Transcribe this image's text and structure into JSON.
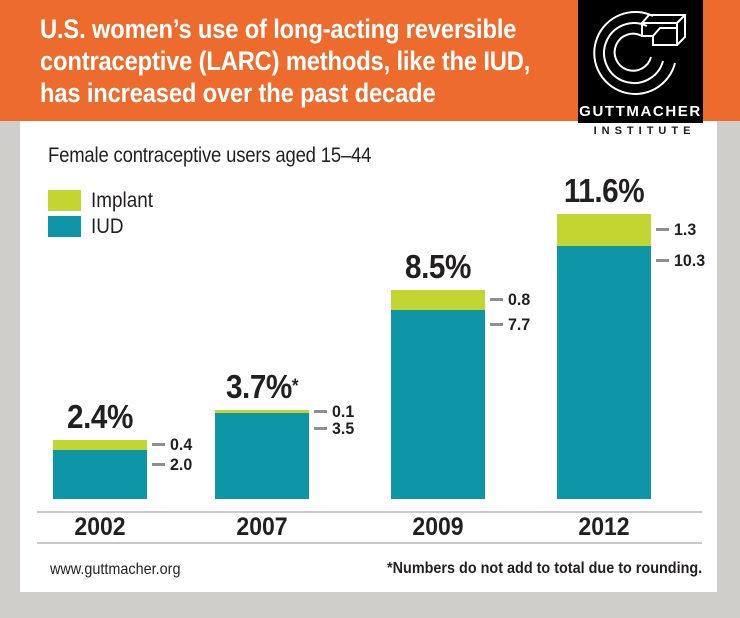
{
  "colors": {
    "orange": "#ed6b2c",
    "teal": "#0e96a6",
    "green": "#c3d530",
    "page_bg": "#cfcecb",
    "card": "#ffffff",
    "ink": "#231f20",
    "line": "#c9c9c9",
    "dash": "#8f8f8f"
  },
  "header": {
    "title": "U.S. women’s use of long-acting reversible\ncontraceptive (LARC) methods, like the IUD,\nhas increased over the past decade"
  },
  "logo": {
    "name": "GUTTMACHER",
    "sub": "INSTITUTE",
    "icon": "guttmacher-g-logo"
  },
  "chart": {
    "subtitle": "Female contraceptive users aged 15–44",
    "legend": [
      {
        "label": "Implant",
        "color": "#c3d530"
      },
      {
        "label": "IUD",
        "color": "#0e96a6"
      }
    ]
  },
  "chart_data": {
    "type": "bar",
    "stacked": true,
    "title": "U.S. women’s use of long-acting reversible contraceptive (LARC) methods, like the IUD, has increased over the past decade",
    "subtitle": "Female contraceptive users aged 15–44",
    "categories": [
      "2002",
      "2007",
      "2009",
      "2012"
    ],
    "series": [
      {
        "name": "Implant",
        "values": [
          0.4,
          0.1,
          0.8,
          1.3
        ],
        "labels": [
          "0.4",
          "0.1",
          "0.8",
          "1.3"
        ],
        "color": "#c3d530"
      },
      {
        "name": "IUD",
        "values": [
          2.0,
          3.5,
          7.7,
          10.3
        ],
        "labels": [
          "2.0",
          "3.5",
          "7.7",
          "10.3"
        ],
        "color": "#0e96a6"
      }
    ],
    "totals": [
      {
        "label": "2.4%",
        "sup": ""
      },
      {
        "label": "3.7%",
        "sup": "*"
      },
      {
        "label": "8.5%",
        "sup": ""
      },
      {
        "label": "11.6%",
        "sup": ""
      }
    ],
    "unit": "%",
    "ylim": [
      0,
      12
    ],
    "grid": false,
    "legend_position": "top-left",
    "footnote": "*Numbers do not add to total due to rounding."
  },
  "footer": {
    "left": "www.guttmacher.org",
    "right": "*Numbers do not add to total due to rounding."
  }
}
